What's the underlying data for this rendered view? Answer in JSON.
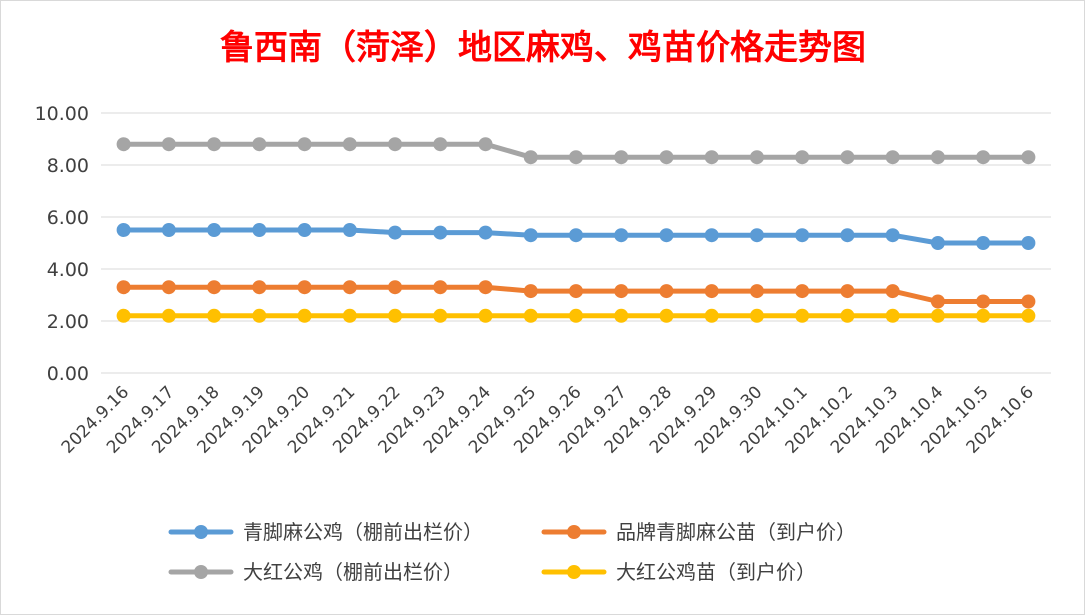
{
  "chart_data": {
    "type": "line",
    "title": "鲁西南（菏泽）地区麻鸡、鸡苗价格走势图",
    "title_color": "#ff0000",
    "categories": [
      "2024.9.16",
      "2024.9.17",
      "2024.9.18",
      "2024.9.19",
      "2024.9.20",
      "2024.9.21",
      "2024.9.22",
      "2024.9.23",
      "2024.9.24",
      "2024.9.25",
      "2024.9.26",
      "2024.9.27",
      "2024.9.28",
      "2024.9.29",
      "2024.9.30",
      "2024.10.1",
      "2024.10.2",
      "2024.10.3",
      "2024.10.4",
      "2024.10.5",
      "2024.10.6"
    ],
    "ylim": [
      0,
      10
    ],
    "yticks": [
      "0.00",
      "2.00",
      "4.00",
      "6.00",
      "8.00",
      "10.00"
    ],
    "grid": true,
    "legend_position": "bottom",
    "series": [
      {
        "name": "青脚麻公鸡（棚前出栏价）",
        "color": "#5b9bd5",
        "values": [
          5.5,
          5.5,
          5.5,
          5.5,
          5.5,
          5.5,
          5.4,
          5.4,
          5.4,
          5.3,
          5.3,
          5.3,
          5.3,
          5.3,
          5.3,
          5.3,
          5.3,
          5.3,
          5.0,
          5.0,
          5.0
        ]
      },
      {
        "name": "品牌青脚麻公苗（到户价）",
        "color": "#ed7d31",
        "values": [
          3.3,
          3.3,
          3.3,
          3.3,
          3.3,
          3.3,
          3.3,
          3.3,
          3.3,
          3.15,
          3.15,
          3.15,
          3.15,
          3.15,
          3.15,
          3.15,
          3.15,
          3.15,
          2.75,
          2.75,
          2.75
        ]
      },
      {
        "name": "大红公鸡（棚前出栏价）",
        "color": "#a5a5a5",
        "values": [
          8.8,
          8.8,
          8.8,
          8.8,
          8.8,
          8.8,
          8.8,
          8.8,
          8.8,
          8.3,
          8.3,
          8.3,
          8.3,
          8.3,
          8.3,
          8.3,
          8.3,
          8.3,
          8.3,
          8.3,
          8.3
        ]
      },
      {
        "name": "大红公鸡苗（到户价）",
        "color": "#ffc000",
        "values": [
          2.2,
          2.2,
          2.2,
          2.2,
          2.2,
          2.2,
          2.2,
          2.2,
          2.2,
          2.2,
          2.2,
          2.2,
          2.2,
          2.2,
          2.2,
          2.2,
          2.2,
          2.2,
          2.2,
          2.2,
          2.2
        ]
      }
    ]
  }
}
